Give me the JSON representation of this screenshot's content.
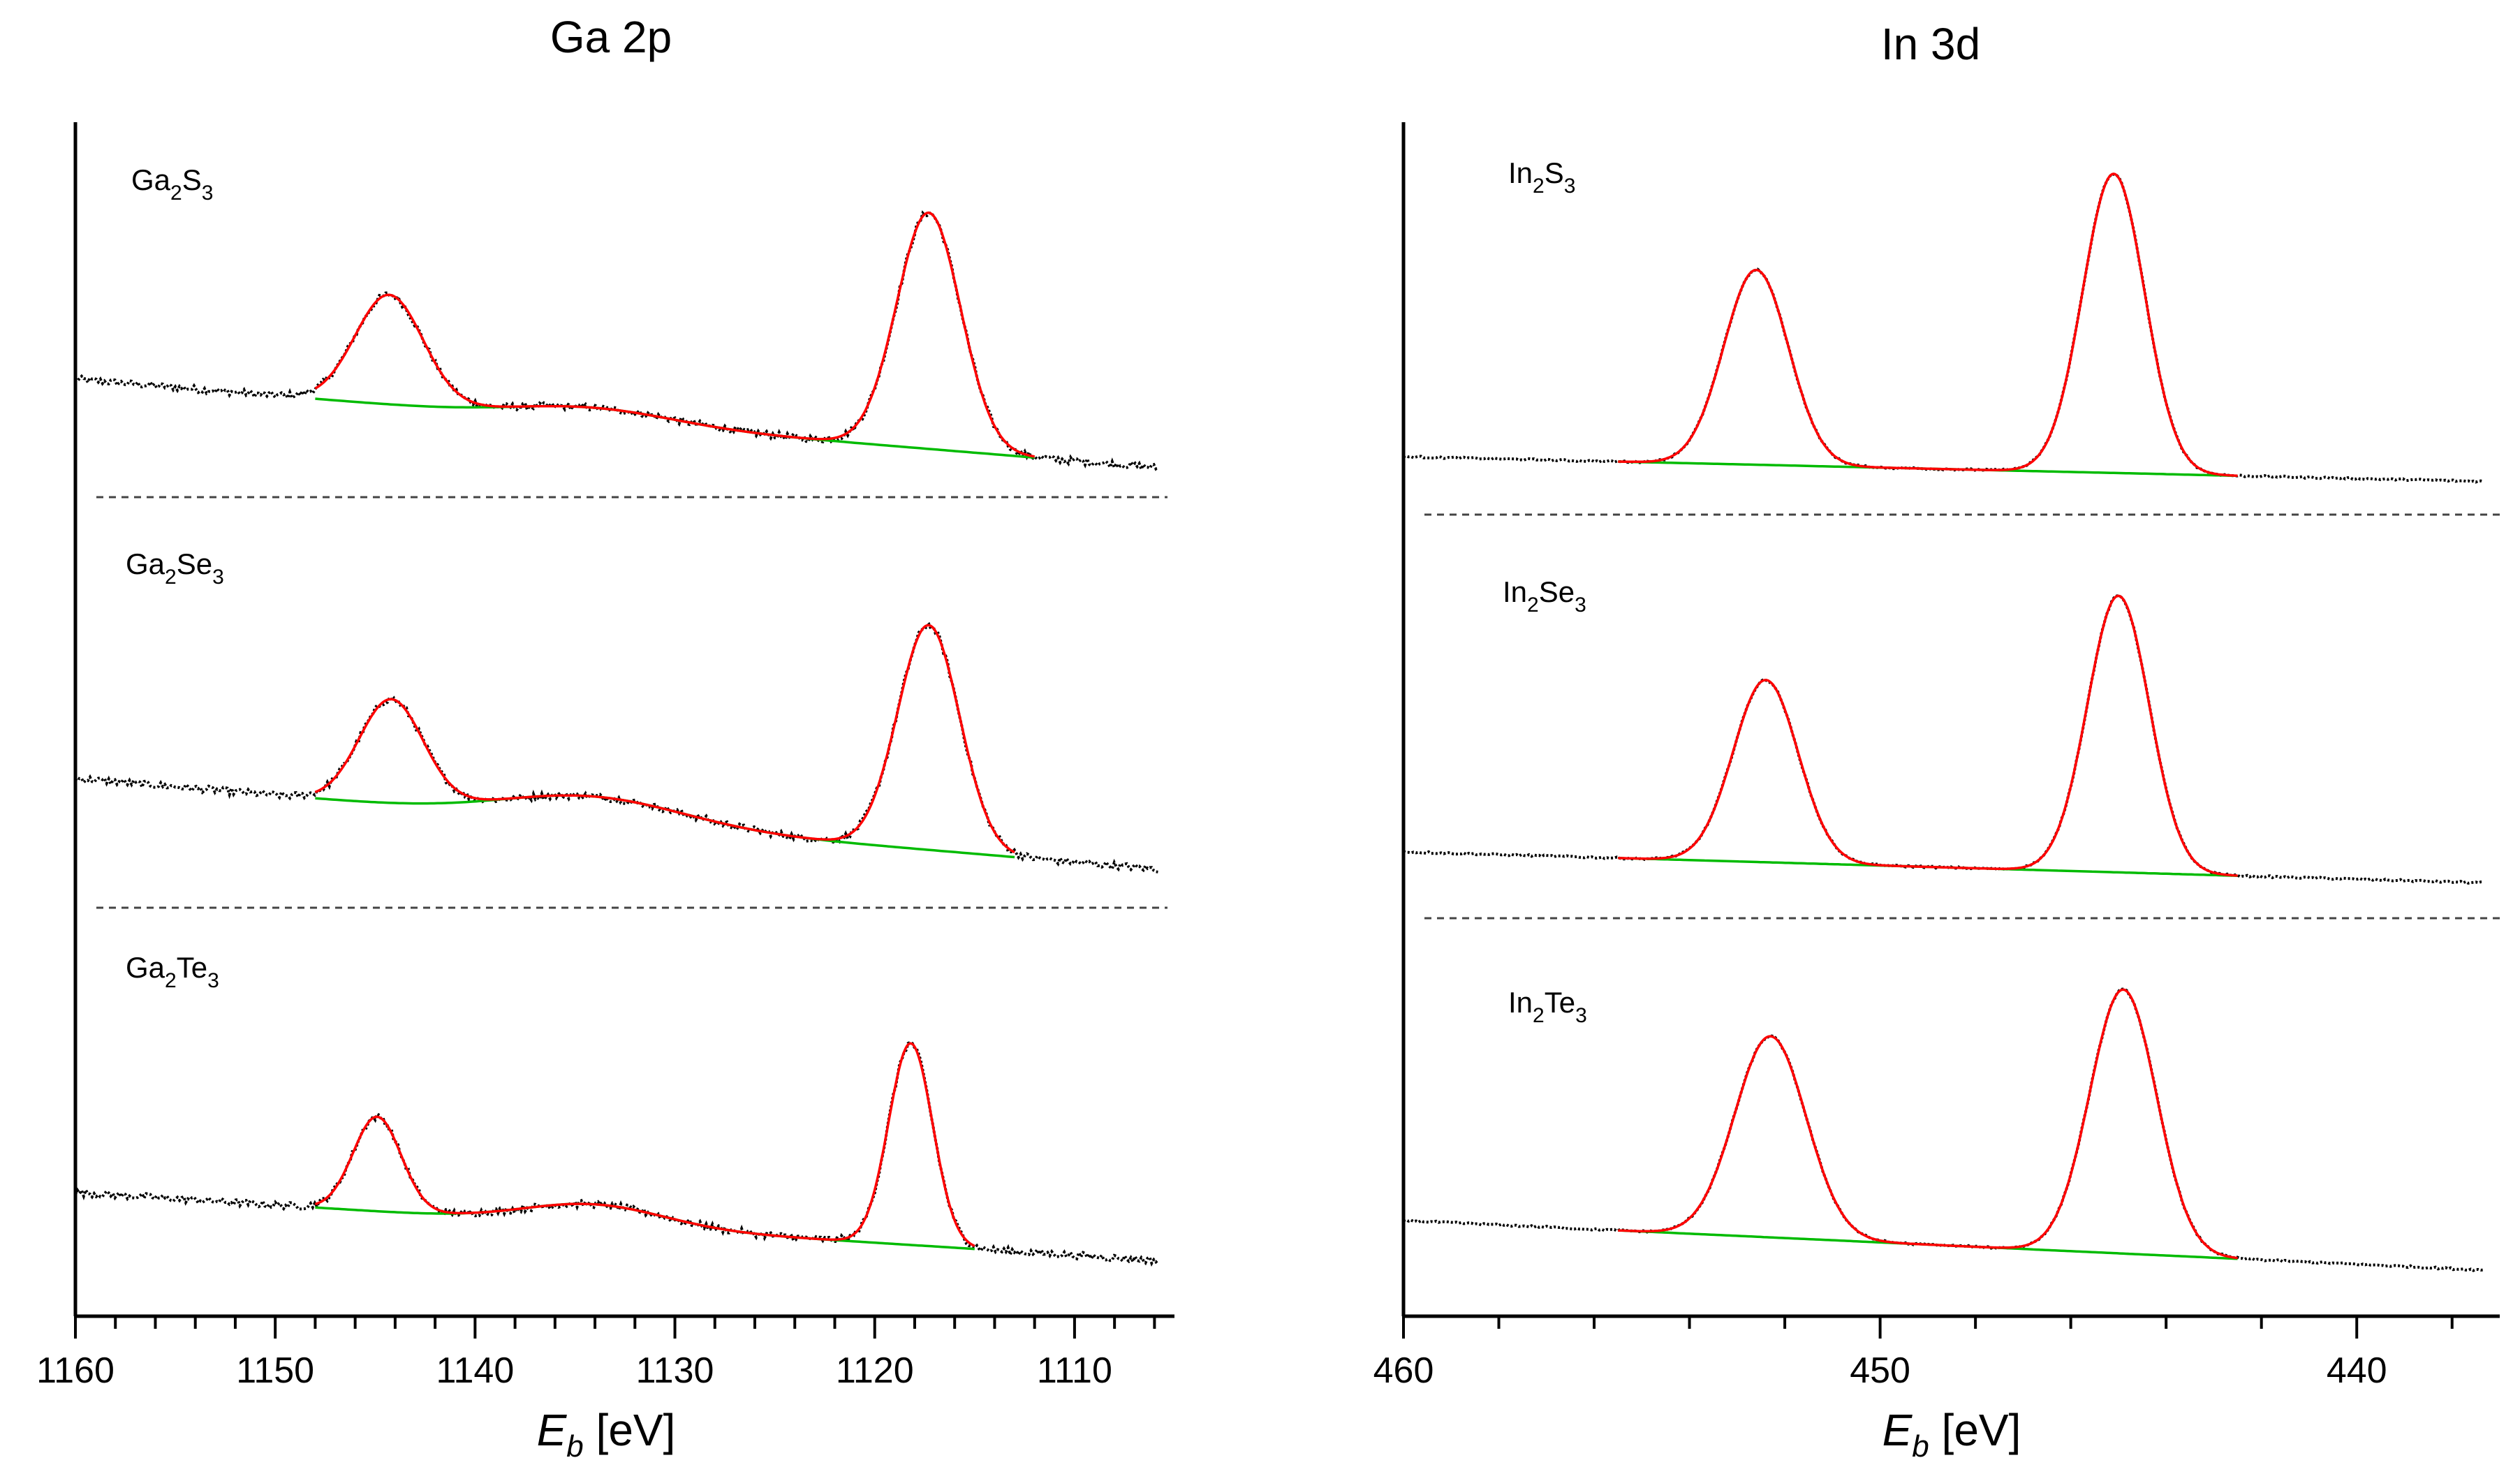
{
  "figure": {
    "description_free": true
  },
  "chart_data": [
    {
      "type": "line",
      "title": "Ga 2p",
      "xlabel_main": "E",
      "xlabel_sub": "b",
      "xlabel_unit": " [eV]",
      "ylabel": "",
      "xlim": [
        1160,
        1105
      ],
      "xticks": [
        1160,
        1150,
        1140,
        1130,
        1120,
        1110
      ],
      "xtick_labels": [
        "1160",
        "1150",
        "1140",
        "1130",
        "1120",
        "1110"
      ],
      "colors": {
        "data": "#000000",
        "fit": "#ff0000",
        "background": "#00bb00",
        "separator": "#444444"
      },
      "panels": [
        {
          "label_parts": [
            {
              "t": "Ga",
              "sub": false
            },
            {
              "t": "2",
              "sub": true
            },
            {
              "t": "S",
              "sub": false
            },
            {
              "t": "3",
              "sub": true
            }
          ],
          "baseline_start": 0.8,
          "baseline_end": 0.02,
          "bumps": [
            {
              "center": 1134,
              "amp": 0.12,
              "width": 4
            }
          ],
          "peaks": [
            {
              "center": 1144.3,
              "amp": 0.95,
              "width": 1.7
            },
            {
              "center": 1117.3,
              "amp": 2.05,
              "width": 1.6
            }
          ],
          "fit_range": [
            1148,
            1112
          ],
          "scale": 0.55
        },
        {
          "label_parts": [
            {
              "t": "Ga",
              "sub": false
            },
            {
              "t": "2",
              "sub": true
            },
            {
              "t": "Se",
              "sub": false
            },
            {
              "t": "3",
              "sub": true
            }
          ],
          "baseline_start": 0.82,
          "baseline_end": 0.02,
          "bumps": [
            {
              "center": 1134,
              "amp": 0.22,
              "width": 4.5
            }
          ],
          "peaks": [
            {
              "center": 1144.2,
              "amp": 0.9,
              "width": 1.6
            },
            {
              "center": 1117.3,
              "amp": 1.95,
              "width": 1.55
            }
          ],
          "fit_range": [
            1148,
            1113
          ],
          "scale": 0.55
        },
        {
          "label_parts": [
            {
              "t": "Ga",
              "sub": false
            },
            {
              "t": "2",
              "sub": true
            },
            {
              "t": "Te",
              "sub": false
            },
            {
              "t": "3",
              "sub": true
            }
          ],
          "baseline_start": 0.62,
          "baseline_end": 0.02,
          "bumps": [
            {
              "center": 1134,
              "amp": 0.18,
              "width": 3.5
            }
          ],
          "peaks": [
            {
              "center": 1144.9,
              "amp": 0.82,
              "width": 1.2
            },
            {
              "center": 1118.2,
              "amp": 1.75,
              "width": 1.1
            }
          ],
          "fit_range": [
            1148,
            1115
          ],
          "scale": 0.55
        }
      ]
    },
    {
      "type": "line",
      "title": "In 3d",
      "xlabel_main": "E",
      "xlabel_sub": "b",
      "xlabel_unit": " [eV]",
      "ylabel": "",
      "xlim": [
        460,
        437
      ],
      "xticks": [
        460,
        450,
        440
      ],
      "xtick_labels": [
        "460",
        "450",
        "440"
      ],
      "colors": {
        "data": "#000000",
        "fit": "#ff0000",
        "background": "#00bb00",
        "separator": "#444444"
      },
      "panels": [
        {
          "label_parts": [
            {
              "t": "In",
              "sub": false
            },
            {
              "t": "2",
              "sub": true
            },
            {
              "t": "S",
              "sub": false
            },
            {
              "t": "3",
              "sub": true
            }
          ],
          "baseline_start": 0.2,
          "baseline_end": 0.0,
          "bumps": [],
          "peaks": [
            {
              "center": 452.6,
              "amp": 1.55,
              "width": 0.68
            },
            {
              "center": 445.1,
              "amp": 2.38,
              "width": 0.65
            }
          ],
          "fit_range": [
            455.5,
            442.5
          ],
          "scale": 0.6
        },
        {
          "label_parts": [
            {
              "t": "In",
              "sub": false
            },
            {
              "t": "2",
              "sub": true
            },
            {
              "t": "Se",
              "sub": false
            },
            {
              "t": "3",
              "sub": true
            }
          ],
          "baseline_start": 0.25,
          "baseline_end": 0.0,
          "bumps": [],
          "peaks": [
            {
              "center": 452.4,
              "amp": 1.45,
              "width": 0.68
            },
            {
              "center": 445.0,
              "amp": 2.2,
              "width": 0.65
            }
          ],
          "fit_range": [
            455.5,
            442.5
          ],
          "scale": 0.6
        },
        {
          "label_parts": [
            {
              "t": "In",
              "sub": false
            },
            {
              "t": "2",
              "sub": true
            },
            {
              "t": "Te",
              "sub": false
            },
            {
              "t": "3",
              "sub": true
            }
          ],
          "baseline_start": 0.4,
          "baseline_end": 0.0,
          "bumps": [],
          "peaks": [
            {
              "center": 452.3,
              "amp": 1.6,
              "width": 0.75
            },
            {
              "center": 444.9,
              "amp": 2.1,
              "width": 0.7
            }
          ],
          "fit_range": [
            455.5,
            442.5
          ],
          "scale": 0.6
        }
      ]
    }
  ]
}
